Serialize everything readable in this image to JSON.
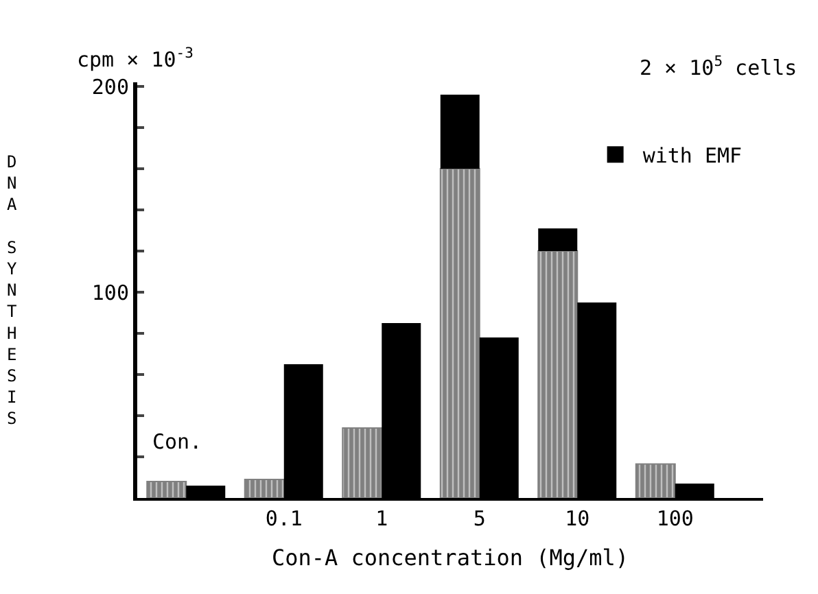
{
  "chart_data": {
    "type": "bar",
    "xlabel": "Con-A concentration (Mg/ml)",
    "ylabel": "DNA SYNTHESIS",
    "categories": [
      null,
      "0.1",
      "1",
      "5",
      "10",
      "100"
    ],
    "series": [
      {
        "color": "#808080",
        "values": [
          8,
          9,
          34,
          160,
          120,
          16.5
        ]
      },
      {
        "color": "#000000",
        "values": [
          null,
          null,
          null,
          36,
          11,
          null
        ],
        "base": [
          null,
          null,
          null,
          160,
          120,
          null
        ]
      },
      {
        "name": "with EMF",
        "color": "#000000",
        "values": [
          6,
          65,
          85,
          78,
          95,
          7
        ]
      }
    ],
    "ylim": [
      0,
      202
    ],
    "yticks": [
      {
        "value": 20,
        "label": null
      },
      {
        "value": 40,
        "label": null
      },
      {
        "value": 60,
        "label": null
      },
      {
        "value": 80,
        "label": null
      },
      100,
      {
        "value": 120,
        "label": null
      },
      {
        "value": 140,
        "label": null
      },
      {
        "value": 160,
        "label": null
      },
      {
        "value": 180,
        "label": null
      },
      200
    ],
    "legend": "top right",
    "annotations": [
      "cpm × 10$^{-3}$",
      "2 × 10$^{5}$ cells",
      "Con."
    ]
  }
}
